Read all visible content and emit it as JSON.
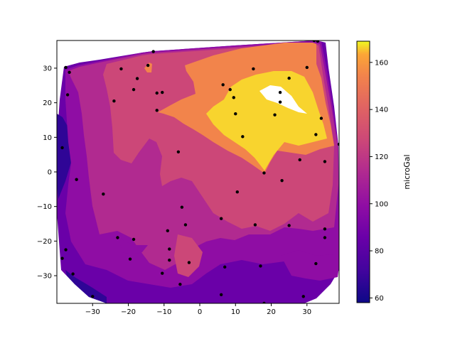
{
  "chart_data": {
    "type": "contour",
    "x_ticks": [
      -30,
      -20,
      -10,
      0,
      10,
      20,
      30
    ],
    "y_ticks": [
      -30,
      -20,
      -10,
      0,
      10,
      20,
      30
    ],
    "xlim": [
      -40,
      39
    ],
    "ylim": [
      -38,
      38
    ],
    "colorbar": {
      "label": "microGal",
      "ticks": [
        60,
        80,
        100,
        120,
        140,
        160
      ],
      "range": [
        58,
        169
      ],
      "colormap": "plasma"
    },
    "points": [
      [
        -37.5,
        30.2
      ],
      [
        -36.5,
        28.8
      ],
      [
        -37,
        22.3
      ],
      [
        -38.5,
        7
      ],
      [
        -34.5,
        -2.2
      ],
      [
        -27,
        -6.4
      ],
      [
        -37.5,
        -22.5
      ],
      [
        -35.5,
        -29.5
      ],
      [
        -30,
        -36
      ],
      [
        -24,
        20.5
      ],
      [
        -22,
        29.8
      ],
      [
        -18.5,
        23.8
      ],
      [
        -17.5,
        27
      ],
      [
        -14.5,
        30.8
      ],
      [
        -13,
        34.8
      ],
      [
        -12,
        22.8
      ],
      [
        -10.5,
        23
      ],
      [
        -12,
        17.8
      ],
      [
        -23,
        -19
      ],
      [
        -18.5,
        -19.5
      ],
      [
        -19.5,
        -25.2
      ],
      [
        -9,
        -17
      ],
      [
        -8.5,
        -22.3
      ],
      [
        -8.5,
        -25.5
      ],
      [
        -10.5,
        -29.3
      ],
      [
        -5.5,
        -32.5
      ],
      [
        -6,
        5.8
      ],
      [
        -5,
        -10.2
      ],
      [
        -4,
        -15.3
      ],
      [
        -3,
        -26.2
      ],
      [
        6.5,
        25.2
      ],
      [
        8.5,
        23.8
      ],
      [
        9.5,
        21.5
      ],
      [
        10,
        16.8
      ],
      [
        12,
        10.2
      ],
      [
        15,
        29.8
      ],
      [
        10.5,
        -5.8
      ],
      [
        6,
        -13.5
      ],
      [
        7,
        -27.5
      ],
      [
        6,
        -35.5
      ],
      [
        15.5,
        -15.3
      ],
      [
        17,
        -27.2
      ],
      [
        18,
        -38
      ],
      [
        18,
        -0.3
      ],
      [
        21,
        16.5
      ],
      [
        22.5,
        23
      ],
      [
        22.5,
        20.2
      ],
      [
        25,
        27.1
      ],
      [
        23,
        -2.5
      ],
      [
        25,
        -15.5
      ],
      [
        28,
        3.5
      ],
      [
        29,
        -36
      ],
      [
        30,
        30.2
      ],
      [
        32,
        38
      ],
      [
        33,
        37.8
      ],
      [
        32.5,
        10.8
      ],
      [
        34,
        15.5
      ],
      [
        35,
        3
      ],
      [
        35,
        -16.5
      ],
      [
        35,
        -19
      ],
      [
        32.5,
        -26.5
      ],
      [
        39,
        8
      ],
      [
        -38.5,
        -25
      ]
    ]
  }
}
